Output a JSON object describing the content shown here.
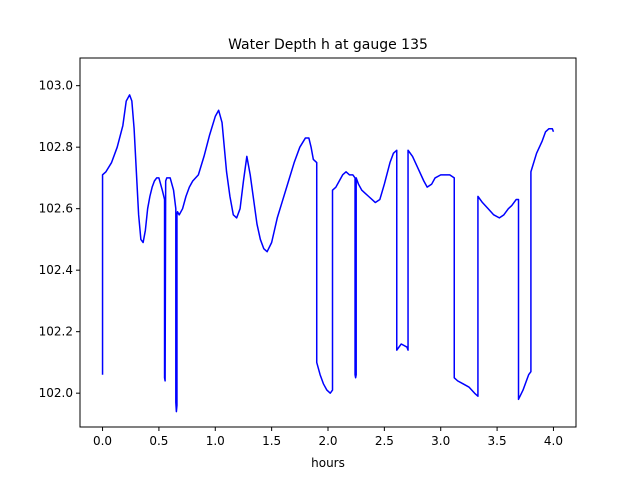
{
  "chart_data": {
    "type": "line",
    "title": "Water Depth h at gauge 135",
    "xlabel": "hours",
    "ylabel": "",
    "xlim": [
      -0.2,
      4.2
    ],
    "ylim": [
      101.89,
      103.09
    ],
    "xticks": [
      0.0,
      0.5,
      1.0,
      1.5,
      2.0,
      2.5,
      3.0,
      3.5,
      4.0
    ],
    "xtick_labels": [
      "0.0",
      "0.5",
      "1.0",
      "1.5",
      "2.0",
      "2.5",
      "3.0",
      "3.5",
      "4.0"
    ],
    "yticks": [
      102.0,
      102.2,
      102.4,
      102.6,
      102.8,
      103.0
    ],
    "ytick_labels": [
      "102.0",
      "102.2",
      "102.4",
      "102.6",
      "102.8",
      "103.0"
    ],
    "grid": false,
    "series": [
      {
        "color": "#0000ff",
        "x": [
          0.0,
          0.0,
          0.03,
          0.08,
          0.13,
          0.18,
          0.21,
          0.24,
          0.26,
          0.28,
          0.3,
          0.32,
          0.34,
          0.36,
          0.38,
          0.4,
          0.42,
          0.44,
          0.46,
          0.48,
          0.5,
          0.53,
          0.55,
          0.55,
          0.555,
          0.56,
          0.57,
          0.6,
          0.63,
          0.65,
          0.65,
          0.655,
          0.66,
          0.66,
          0.665,
          0.68,
          0.71,
          0.74,
          0.77,
          0.8,
          0.85,
          0.9,
          0.95,
          1.0,
          1.03,
          1.06,
          1.08,
          1.1,
          1.13,
          1.16,
          1.19,
          1.22,
          1.25,
          1.28,
          1.31,
          1.34,
          1.37,
          1.4,
          1.43,
          1.46,
          1.5,
          1.55,
          1.6,
          1.65,
          1.7,
          1.75,
          1.8,
          1.83,
          1.85,
          1.87,
          1.9,
          1.9,
          1.93,
          1.96,
          1.99,
          2.02,
          2.04,
          2.04,
          2.07,
          2.1,
          2.13,
          2.16,
          2.19,
          2.22,
          2.24,
          2.24,
          2.245,
          2.25,
          2.25,
          2.27,
          2.3,
          2.33,
          2.36,
          2.39,
          2.42,
          2.46,
          2.5,
          2.55,
          2.58,
          2.61,
          2.61,
          2.65,
          2.7,
          2.71,
          2.71,
          2.75,
          2.8,
          2.85,
          2.88,
          2.92,
          2.95,
          3.0,
          3.05,
          3.08,
          3.12,
          3.12,
          3.15,
          3.2,
          3.25,
          3.3,
          3.33,
          3.33,
          3.37,
          3.42,
          3.47,
          3.52,
          3.56,
          3.6,
          3.63,
          3.67,
          3.69,
          3.69,
          3.73,
          3.78,
          3.8,
          3.8,
          3.85,
          3.9,
          3.93,
          3.96,
          3.99,
          4.0
        ],
        "y": [
          102.06,
          102.71,
          102.72,
          102.75,
          102.8,
          102.87,
          102.95,
          102.97,
          102.95,
          102.86,
          102.72,
          102.58,
          102.5,
          102.49,
          102.53,
          102.6,
          102.64,
          102.67,
          102.69,
          102.7,
          102.7,
          102.66,
          102.63,
          102.05,
          102.04,
          102.69,
          102.7,
          102.7,
          102.66,
          102.6,
          101.97,
          101.94,
          101.96,
          102.58,
          102.59,
          102.58,
          102.6,
          102.64,
          102.67,
          102.69,
          102.71,
          102.77,
          102.84,
          102.9,
          102.92,
          102.88,
          102.8,
          102.72,
          102.64,
          102.58,
          102.57,
          102.6,
          102.69,
          102.77,
          102.71,
          102.63,
          102.55,
          102.5,
          102.47,
          102.46,
          102.49,
          102.57,
          102.63,
          102.69,
          102.75,
          102.8,
          102.83,
          102.83,
          102.8,
          102.76,
          102.75,
          102.1,
          102.06,
          102.03,
          102.01,
          102.0,
          102.01,
          102.66,
          102.67,
          102.69,
          102.71,
          102.72,
          102.71,
          102.71,
          102.7,
          102.06,
          102.05,
          102.06,
          102.7,
          102.68,
          102.66,
          102.65,
          102.64,
          102.63,
          102.62,
          102.63,
          102.68,
          102.75,
          102.78,
          102.79,
          102.14,
          102.16,
          102.15,
          102.14,
          102.79,
          102.77,
          102.73,
          102.69,
          102.67,
          102.68,
          102.7,
          102.71,
          102.71,
          102.71,
          102.7,
          102.05,
          102.04,
          102.03,
          102.02,
          102.0,
          101.99,
          102.64,
          102.62,
          102.6,
          102.58,
          102.57,
          102.58,
          102.6,
          102.61,
          102.63,
          102.63,
          101.98,
          102.01,
          102.06,
          102.07,
          102.72,
          102.78,
          102.82,
          102.85,
          102.86,
          102.86,
          102.85
        ]
      }
    ]
  }
}
